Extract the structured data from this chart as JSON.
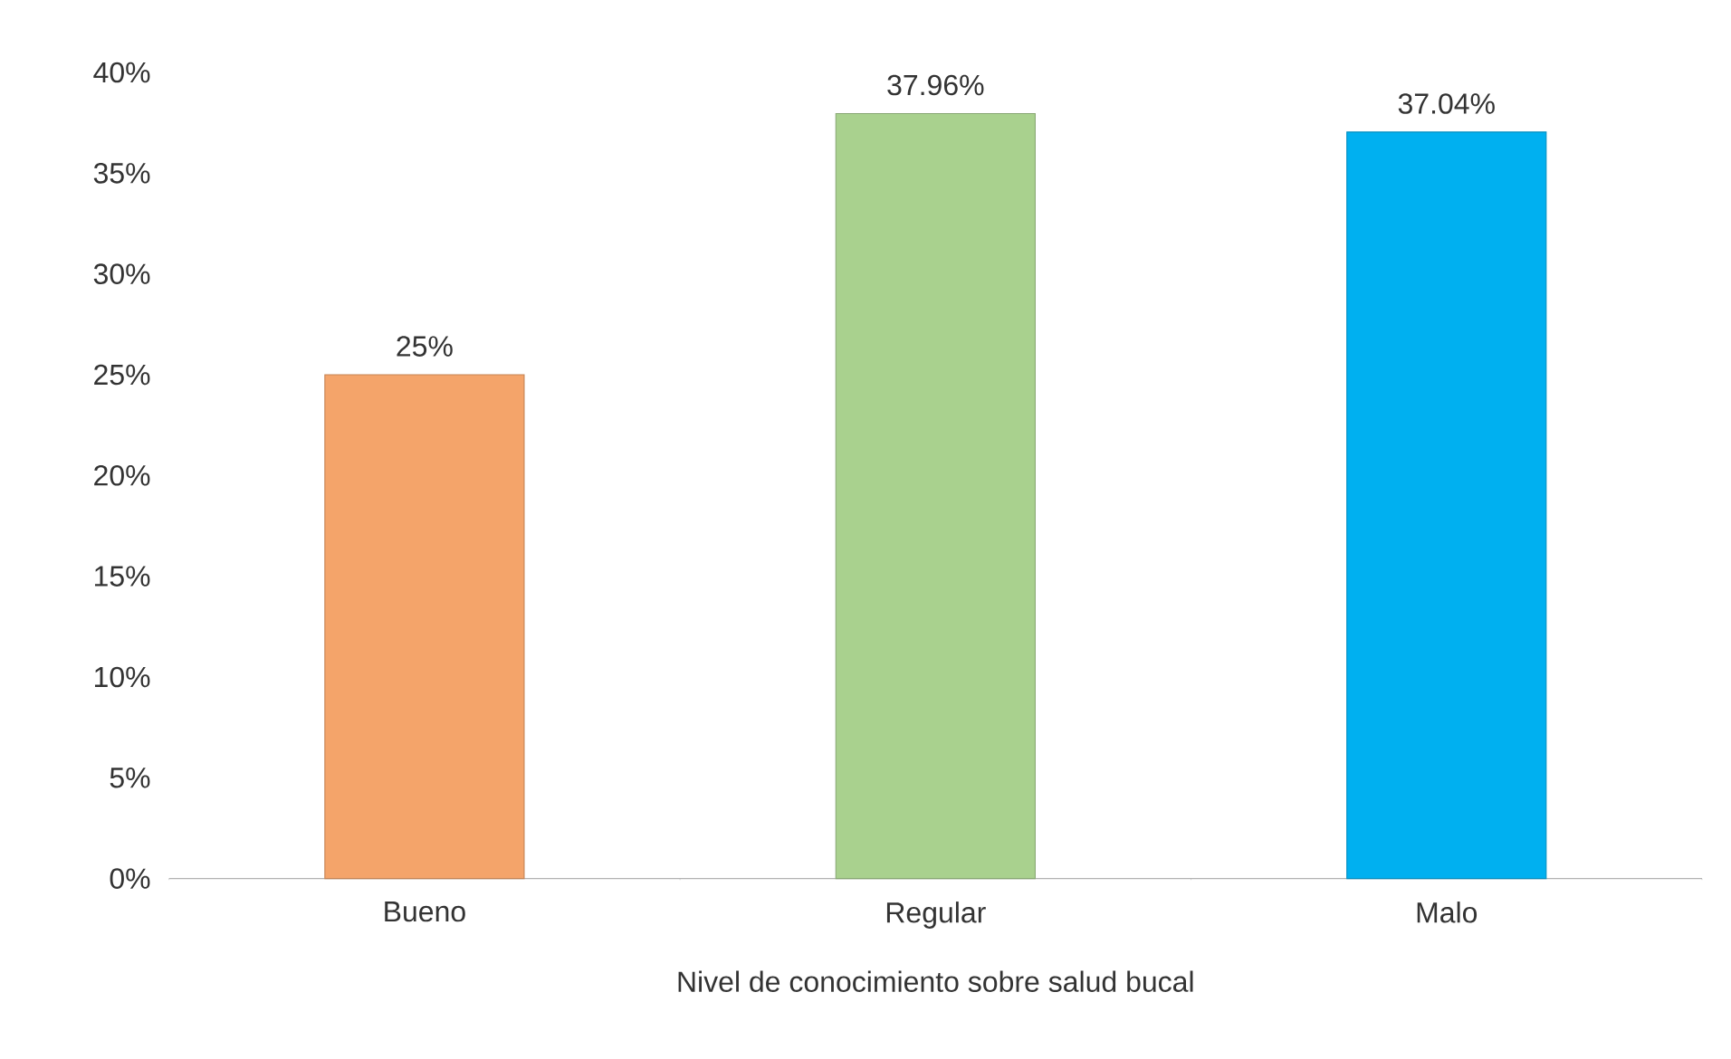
{
  "chart_data": {
    "type": "bar",
    "xlabel": "Nivel de conocimiento sobre salud bucal",
    "categories": [
      "Bueno",
      "Regular",
      "Malo"
    ],
    "values": [
      25,
      37.96,
      37.04
    ],
    "value_labels": [
      "25%",
      "37.96%",
      "37.04%"
    ],
    "colors": [
      "#f4a46a",
      "#a9d18e",
      "#00b0f0"
    ],
    "ylim": [
      0,
      40
    ],
    "yticks": [
      {
        "value": 0,
        "label": "0%"
      },
      {
        "value": 5,
        "label": "5%"
      },
      {
        "value": 10,
        "label": "10%"
      },
      {
        "value": 15,
        "label": "15%"
      },
      {
        "value": 20,
        "label": "20%"
      },
      {
        "value": 25,
        "label": "25%"
      },
      {
        "value": 30,
        "label": "30%"
      },
      {
        "value": 35,
        "label": "35%"
      },
      {
        "value": 40,
        "label": "40%"
      }
    ]
  }
}
